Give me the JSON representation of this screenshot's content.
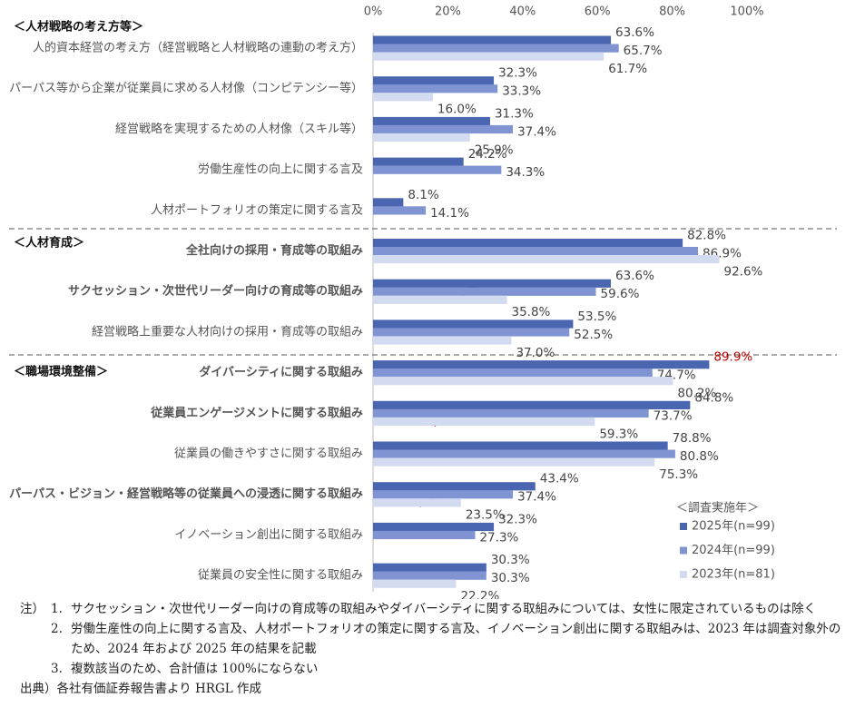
{
  "chart_data": {
    "type": "bar",
    "orientation": "horizontal",
    "sections": [
      {
        "label": "＜人材戦略の考え方等＞",
        "categories": [
          "人的資本経営の考え方（経営戦略と人材戦略の連動の考え方）",
          "パーパス等から企業が従業員に求める人材像（コンピテンシー等）",
          "経営戦略を実現するための人材像（スキル等）",
          "労働生産性の向上に関する言及",
          "人材ポートフォリオの策定に関する言及"
        ],
        "bold": [
          false,
          false,
          false,
          false,
          false
        ]
      },
      {
        "label": "＜人材育成＞",
        "categories": [
          "全社向けの採用・育成等の取組み",
          "サクセッション・次世代リーダー向けの育成等の取組み",
          "経営戦略上重要な人材向けの採用・育成等の取組み"
        ],
        "bold": [
          true,
          true,
          false
        ]
      },
      {
        "label": "＜職場環境整備＞",
        "categories": [
          "ダイバーシティに関する取組み",
          "従業員エンゲージメントに関する取組み",
          "従業員の働きやすさに関する取組み",
          "パーパス・ビジョン・経営戦略等の従業員への浸透に関する取組み",
          "イノベーション創出に関する取組み",
          "従業員の安全性に関する取組み"
        ],
        "bold": [
          true,
          true,
          false,
          true,
          false,
          false
        ]
      }
    ],
    "series": [
      {
        "name": "2025年(n=99)",
        "color": "#4a66b0",
        "values": [
          63.6,
          32.3,
          31.3,
          24.2,
          8.1,
          82.8,
          63.6,
          53.5,
          89.9,
          84.8,
          78.8,
          43.4,
          32.3,
          30.3
        ],
        "value_labels": [
          "63.6%",
          "32.3%",
          "31.3%",
          "24.2%",
          "8.1%",
          "82.8%",
          "63.6%",
          "53.5%",
          "89.9%",
          "84.8%",
          "78.8%",
          "43.4%",
          "32.3%",
          "30.3%"
        ],
        "value_label_colors": [
          null,
          null,
          null,
          null,
          null,
          null,
          null,
          null,
          "#c00000",
          null,
          null,
          null,
          null,
          null
        ]
      },
      {
        "name": "2024年(n=99)",
        "color": "#8093d2",
        "values": [
          65.7,
          33.3,
          37.4,
          34.3,
          14.1,
          86.9,
          59.6,
          52.5,
          74.7,
          73.7,
          80.8,
          37.4,
          27.3,
          30.3
        ],
        "value_labels": [
          "65.7%",
          "33.3%",
          "37.4%",
          "34.3%",
          "14.1%",
          "86.9%",
          "59.6%",
          "52.5%",
          "74.7%",
          "73.7%",
          "80.8%",
          "37.4%",
          "27.3%",
          "30.3%"
        ]
      },
      {
        "name": "2023年(n=81)",
        "color": "#d3dbf1",
        "values": [
          61.7,
          16.0,
          25.9,
          null,
          null,
          92.6,
          35.8,
          37.0,
          80.2,
          59.3,
          75.3,
          23.5,
          null,
          22.2
        ],
        "value_labels": [
          "61.7%",
          "16.0%",
          "25.9%",
          null,
          null,
          "92.6%",
          "35.8%",
          "37.0%",
          "80.2%",
          "59.3%",
          "75.3%",
          "23.5%",
          null,
          "22.2%"
        ]
      }
    ],
    "legend_title": "＜調査実施年＞",
    "legend": "bottom-right",
    "xlim": [
      0,
      100
    ],
    "xticks": [
      {
        "value": 0,
        "label": "0%"
      },
      {
        "value": 20,
        "label": "20%"
      },
      {
        "value": 40,
        "label": "40%"
      },
      {
        "value": 60,
        "label": "60%"
      },
      {
        "value": 80,
        "label": "80%"
      },
      {
        "value": 100,
        "label": "100%"
      }
    ],
    "grid": false
  },
  "notes": {
    "prefix": "注）",
    "items": [
      {
        "num": "1.",
        "text": "サクセッション・次世代リーダー向けの育成等の取組みやダイバーシティに関する取組みについては、女性に限定されているものは除く"
      },
      {
        "num": "2.",
        "text": "労働生産性の向上に関する言及、人材ポートフォリオの策定に関する言及、イノベーション創出に関する取組みは、2023 年は調査対象外のため、2024 年および 2025 年の結果を記載"
      },
      {
        "num": "3.",
        "text": "複数該当のため、合計値は 100%にならない"
      }
    ],
    "source": "出典）各社有価証券報告書より HRGL 作成"
  }
}
